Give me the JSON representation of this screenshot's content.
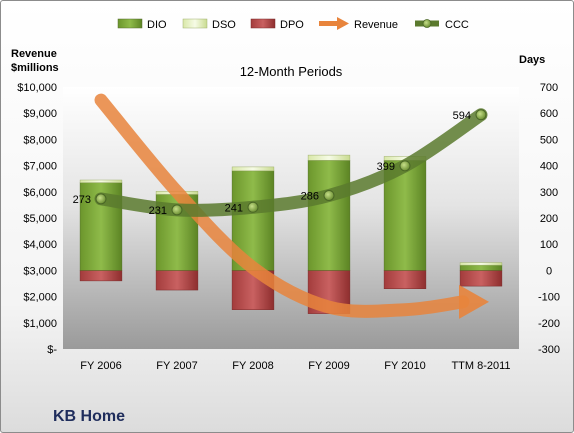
{
  "chart_data": {
    "type": "bar",
    "title": "12-Month Periods",
    "company": "KB Home",
    "categories": [
      "FY 2006",
      "FY 2007",
      "FY 2008",
      "FY 2009",
      "FY 2010",
      "TTM 8-2011"
    ],
    "left_axis": {
      "label_line1": "Revenue",
      "label_line2": "$millions",
      "ticks": [
        "$-",
        "$1,000",
        "$2,000",
        "$3,000",
        "$4,000",
        "$5,000",
        "$6,000",
        "$7,000",
        "$8,000",
        "$9,000",
        "$10,000"
      ],
      "ylim": [
        0,
        10000
      ]
    },
    "right_axis": {
      "label": "Days",
      "ticks": [
        "-300",
        "-200",
        "-100",
        "0",
        "100",
        "200",
        "300",
        "400",
        "500",
        "600",
        "700"
      ],
      "ylim": [
        -300,
        700
      ]
    },
    "series": [
      {
        "name": "DIO",
        "type": "stacked-bar",
        "axis": "right",
        "values": [
          335,
          290,
          380,
          420,
          420,
          20
        ],
        "color": "#7aa33a"
      },
      {
        "name": "DSO",
        "type": "stacked-bar",
        "axis": "right",
        "values": [
          10,
          12,
          15,
          20,
          15,
          10
        ],
        "color": "#e9f2c8"
      },
      {
        "name": "DPO",
        "type": "bar",
        "axis": "right",
        "values": [
          -40,
          -75,
          -150,
          -165,
          -70,
          -60
        ],
        "color": "#b84a4a"
      },
      {
        "name": "Revenue",
        "type": "arrow-line",
        "axis": "left",
        "values": [
          9500,
          6000,
          3100,
          1600,
          1500,
          1800
        ],
        "color": "#e8843c"
      },
      {
        "name": "CCC",
        "type": "line",
        "axis": "right",
        "values": [
          273,
          231,
          241,
          286,
          399,
          594
        ],
        "color": "#5b7a2e"
      }
    ],
    "legend_position": "top",
    "grid": false
  }
}
